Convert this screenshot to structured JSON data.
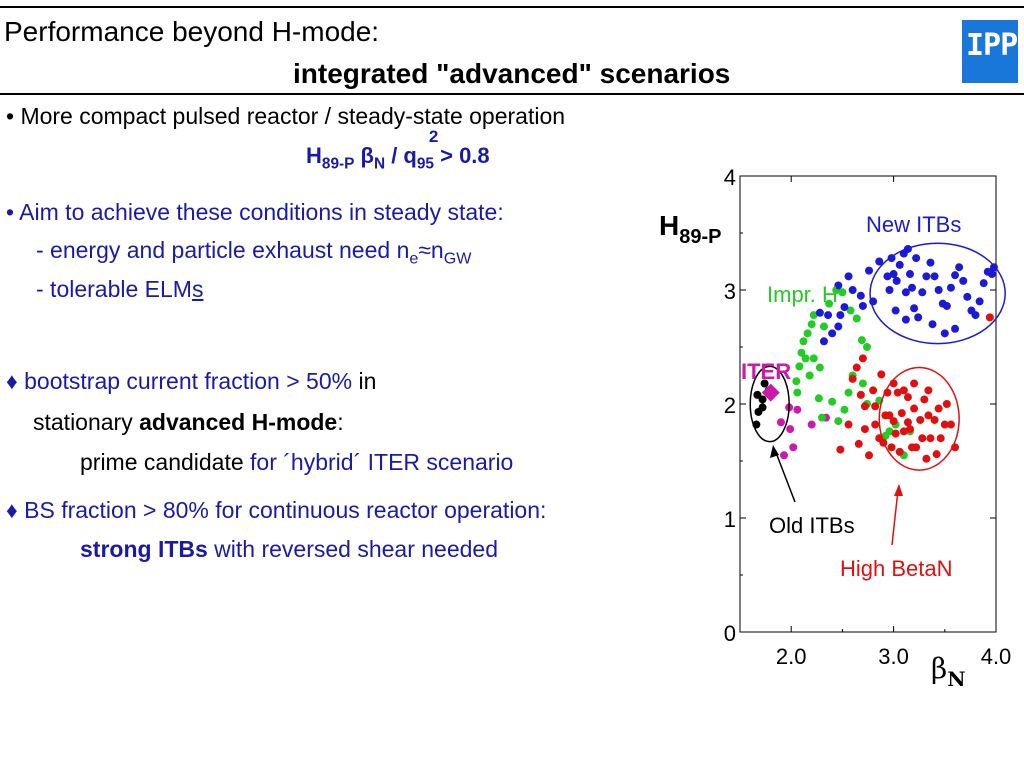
{
  "header": {
    "title_line1": "Performance beyond H-mode:",
    "title_line2": "integrated \"advanced\" scenarios",
    "logo_text": "IPP"
  },
  "content": {
    "bullet1": "• More compact pulsed reactor / steady-state operation",
    "formula": {
      "H": "H",
      "H_sub": "89-P",
      "beta": "β",
      "beta_sub": "N",
      "slash_q": " / q",
      "q_sup": "2",
      "q_sub": "95",
      "rest": " > 0.8"
    },
    "bullet2": "• Aim to achieve these conditions in steady state:",
    "sub1_pre": "- energy and particle exhaust need n",
    "sub1_ne_sub": "e",
    "sub1_approx": "≈n",
    "sub1_gw_sub": "GW",
    "sub2_pre": "- tolerable ELM",
    "sub2_s": "s",
    "bullet3_a": "♦ bootstrap current fraction > 50%",
    "bullet3_b": " in",
    "bullet3_line2_pre": "stationary ",
    "bullet3_line2_bold": "advanced H-mode",
    "bullet3_line2_post": ":",
    "bullet3_line3_pre": "prime candidate ",
    "bullet3_line3_blue": "for ´hybrid´ ITER scenario",
    "bullet4": "♦ BS fraction > 80% for continuous reactor operation:",
    "bullet4_line2_bold": "strong ITBs",
    "bullet4_line2_rest": " with reversed shear needed"
  },
  "chart_data": {
    "type": "scatter",
    "ylabel_main": "H",
    "ylabel_sub": "89-P",
    "xlabel_main": "β",
    "xlabel_sub": "N",
    "xlim": [
      1.5,
      4.0
    ],
    "ylim": [
      0,
      4
    ],
    "x_ticks": [
      {
        "v": 2.0,
        "label": "2.0"
      },
      {
        "v": 3.0,
        "label": "3.0"
      },
      {
        "v": 4.0,
        "label": "4.0"
      }
    ],
    "y_ticks": [
      {
        "v": 0,
        "label": "0"
      },
      {
        "v": 1,
        "label": "1"
      },
      {
        "v": 2,
        "label": "2"
      },
      {
        "v": 3,
        "label": "3"
      },
      {
        "v": 4,
        "label": "4"
      }
    ],
    "colors": {
      "new_itbs": "#1a1ad8",
      "impr_h": "#22cc22",
      "old_itbs": "#000000",
      "high_betan": "#e01010",
      "iter": "#cc1aa8"
    },
    "labels": {
      "new_itbs": "New ITBs",
      "impr_h": "Impr. H",
      "iter": "ITER",
      "old_itbs": "Old ITBs",
      "high_betan": "High BetaN"
    },
    "series": [
      {
        "key": "old_itbs",
        "points": [
          [
            1.66,
            1.82
          ],
          [
            1.68,
            1.93
          ],
          [
            1.72,
            2.04
          ],
          [
            1.67,
            2.08
          ],
          [
            1.74,
            2.18
          ],
          [
            1.78,
            2.12
          ],
          [
            1.83,
            2.1
          ],
          [
            1.72,
            1.97
          ]
        ]
      },
      {
        "key": "iter",
        "diamond": [
          1.8,
          2.1
        ],
        "points": [
          [
            1.9,
            1.84
          ],
          [
            1.99,
            1.78
          ],
          [
            1.93,
            1.55
          ],
          [
            2.02,
            1.62
          ],
          [
            2.06,
            1.95
          ],
          [
            1.98,
            1.97
          ],
          [
            2.34,
            1.88
          ],
          [
            2.2,
            1.82
          ]
        ]
      },
      {
        "key": "impr_h",
        "points": [
          [
            2.05,
            2.2
          ],
          [
            2.08,
            2.33
          ],
          [
            2.1,
            2.45
          ],
          [
            2.12,
            2.55
          ],
          [
            2.16,
            2.62
          ],
          [
            2.2,
            2.7
          ],
          [
            2.22,
            2.78
          ],
          [
            2.14,
            2.4
          ],
          [
            2.06,
            2.1
          ],
          [
            2.18,
            2.25
          ],
          [
            2.22,
            2.4
          ],
          [
            2.28,
            2.32
          ],
          [
            2.32,
            2.68
          ],
          [
            2.37,
            2.88
          ],
          [
            2.44,
            3.0
          ],
          [
            2.5,
            2.98
          ],
          [
            2.58,
            2.82
          ],
          [
            2.64,
            2.75
          ],
          [
            2.69,
            2.56
          ],
          [
            2.74,
            2.5
          ],
          [
            2.6,
            2.25
          ],
          [
            2.56,
            2.1
          ],
          [
            2.52,
            1.95
          ],
          [
            2.46,
            1.85
          ],
          [
            2.4,
            2.02
          ],
          [
            2.3,
            1.88
          ],
          [
            2.27,
            2.05
          ],
          [
            2.7,
            2.18
          ],
          [
            2.74,
            2.0
          ],
          [
            2.86,
            2.03
          ],
          [
            2.92,
            1.72
          ],
          [
            2.96,
            1.76
          ],
          [
            3.1,
            1.55
          ],
          [
            3.02,
            1.82
          ],
          [
            3.16,
            1.76
          ]
        ]
      },
      {
        "key": "new_itbs",
        "points": [
          [
            2.46,
            3.04
          ],
          [
            2.56,
            3.12
          ],
          [
            2.6,
            3.0
          ],
          [
            2.68,
            2.95
          ],
          [
            2.76,
            3.17
          ],
          [
            2.86,
            3.25
          ],
          [
            2.94,
            3.12
          ],
          [
            2.96,
            3.0
          ],
          [
            2.8,
            2.9
          ],
          [
            2.7,
            2.86
          ],
          [
            2.52,
            2.85
          ],
          [
            2.4,
            2.62
          ],
          [
            2.32,
            2.55
          ],
          [
            2.46,
            2.68
          ],
          [
            2.28,
            2.8
          ],
          [
            2.36,
            2.78
          ],
          [
            2.48,
            2.78
          ],
          [
            2.98,
            3.28
          ],
          [
            3.0,
            3.14
          ],
          [
            3.03,
            3.08
          ],
          [
            3.06,
            3.22
          ],
          [
            3.1,
            3.32
          ],
          [
            3.14,
            3.36
          ],
          [
            3.16,
            3.14
          ],
          [
            3.18,
            3.02
          ],
          [
            3.12,
            2.98
          ],
          [
            3.2,
            2.84
          ],
          [
            3.24,
            2.76
          ],
          [
            3.28,
            2.98
          ],
          [
            3.32,
            3.12
          ],
          [
            3.36,
            3.24
          ],
          [
            3.4,
            3.12
          ],
          [
            3.44,
            3.0
          ],
          [
            3.48,
            2.88
          ],
          [
            3.52,
            2.86
          ],
          [
            3.56,
            3.02
          ],
          [
            3.6,
            3.13
          ],
          [
            3.64,
            3.2
          ],
          [
            3.68,
            3.08
          ],
          [
            3.72,
            2.94
          ],
          [
            3.76,
            2.82
          ],
          [
            3.8,
            2.78
          ],
          [
            3.84,
            2.9
          ],
          [
            3.88,
            3.06
          ],
          [
            3.92,
            3.16
          ],
          [
            3.96,
            3.14
          ],
          [
            3.98,
            3.2
          ],
          [
            3.5,
            2.62
          ],
          [
            3.22,
            3.28
          ],
          [
            3.6,
            2.66
          ],
          [
            3.38,
            2.7
          ],
          [
            3.12,
            2.74
          ],
          [
            3.02,
            2.82
          ]
        ]
      },
      {
        "key": "high_betan",
        "points": [
          [
            2.48,
            1.6
          ],
          [
            2.56,
            1.82
          ],
          [
            2.6,
            2.22
          ],
          [
            2.66,
            1.65
          ],
          [
            2.68,
            2.08
          ],
          [
            2.72,
            1.78
          ],
          [
            2.76,
            1.55
          ],
          [
            2.8,
            2.12
          ],
          [
            2.82,
            1.98
          ],
          [
            2.82,
            1.82
          ],
          [
            2.86,
            1.7
          ],
          [
            2.9,
            1.66
          ],
          [
            2.92,
            1.9
          ],
          [
            2.94,
            2.1
          ],
          [
            2.96,
            1.9
          ],
          [
            2.98,
            1.62
          ],
          [
            3.0,
            2.18
          ],
          [
            3.0,
            1.85
          ],
          [
            3.02,
            1.74
          ],
          [
            3.04,
            2.1
          ],
          [
            3.06,
            1.58
          ],
          [
            3.08,
            1.92
          ],
          [
            3.1,
            2.12
          ],
          [
            3.1,
            1.76
          ],
          [
            3.14,
            2.06
          ],
          [
            3.16,
            1.78
          ],
          [
            3.18,
            1.62
          ],
          [
            3.2,
            1.96
          ],
          [
            3.2,
            2.18
          ],
          [
            3.22,
            1.62
          ],
          [
            3.26,
            1.86
          ],
          [
            3.28,
            1.7
          ],
          [
            3.3,
            2.04
          ],
          [
            3.32,
            1.52
          ],
          [
            3.34,
            1.9
          ],
          [
            3.36,
            1.7
          ],
          [
            3.4,
            1.86
          ],
          [
            3.42,
            1.56
          ],
          [
            3.44,
            1.96
          ],
          [
            3.46,
            1.7
          ],
          [
            3.5,
            1.82
          ],
          [
            3.52,
            2.0
          ],
          [
            3.56,
            1.82
          ],
          [
            3.6,
            1.62
          ],
          [
            2.64,
            2.32
          ],
          [
            2.7,
            2.4
          ],
          [
            2.88,
            2.26
          ],
          [
            3.34,
            2.12
          ],
          [
            2.72,
            1.98
          ],
          [
            3.14,
            1.84
          ],
          [
            3.94,
            2.76
          ]
        ]
      }
    ],
    "ellipses": [
      {
        "key": "old_itbs",
        "cx": 1.79,
        "cy": 2.0,
        "rx": 0.19,
        "ry": 0.33
      },
      {
        "key": "new_itbs",
        "cx": 3.43,
        "cy": 2.97,
        "rx": 0.66,
        "ry": 0.44
      },
      {
        "key": "high_betan",
        "cx": 3.25,
        "cy": 1.87,
        "rx": 0.39,
        "ry": 0.45
      }
    ]
  }
}
